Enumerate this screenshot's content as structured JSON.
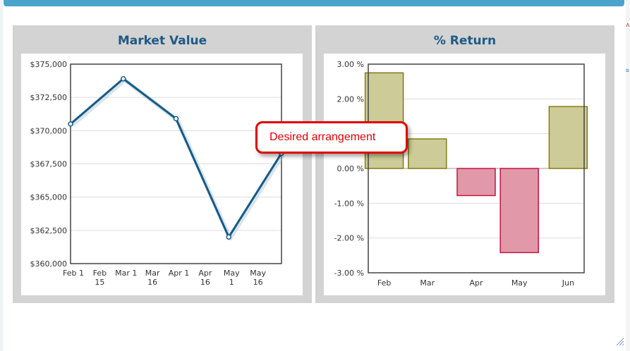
{
  "window": {
    "callout_text": "Desired arrangement"
  },
  "colors": {
    "accent": "#4aa3cb",
    "title": "#1d5a86",
    "line": "#155a86",
    "positive": "#cdcb97",
    "positive_border": "#807c10",
    "negative": "#e198a8",
    "negative_border": "#c4163f"
  },
  "chart_data": [
    {
      "type": "line",
      "title": "Market Value",
      "x": [
        "Feb 1",
        "Feb 15",
        "Mar 1",
        "Mar 16",
        "Apr 1",
        "Apr 16",
        "May 1",
        "May 16"
      ],
      "x_tick_labels": [
        [
          "Feb 1"
        ],
        [
          "Feb",
          "15"
        ],
        [
          "Mar 1"
        ],
        [
          "Mar",
          "16"
        ],
        [
          "Apr 1"
        ],
        [
          "Apr",
          "16"
        ],
        [
          "May",
          "1"
        ],
        [
          "May",
          "16"
        ]
      ],
      "points": [
        {
          "x": 0,
          "y": 370500
        },
        {
          "x": 2,
          "y": 373900
        },
        {
          "x": 4,
          "y": 370900
        },
        {
          "x": 6,
          "y": 362000
        },
        {
          "x": 8,
          "y": 368300
        }
      ],
      "y_ticks": [
        "$375,000",
        "$372,500",
        "$370,000",
        "$367,500",
        "$365,000",
        "$362,500",
        "$360,000"
      ],
      "y_tick_values": [
        375000,
        372500,
        370000,
        367500,
        365000,
        362500,
        360000
      ],
      "ylim": [
        360000,
        375000
      ],
      "grid": true,
      "legend": "none"
    },
    {
      "type": "bar",
      "title": "% Return",
      "categories": [
        "Feb",
        "Mar",
        "Apr",
        "May",
        "Jun"
      ],
      "values": [
        2.75,
        0.85,
        -0.78,
        -2.42,
        1.78
      ],
      "y_ticks": [
        "3.00 %",
        "2.00 %",
        "1.00 %",
        "0.00 %",
        "-1.00 %",
        "-2.00 %",
        "-3.00 %"
      ],
      "y_tick_values": [
        3,
        2,
        1,
        0,
        -1,
        -2,
        -3
      ],
      "ylim": [
        -3,
        3
      ],
      "grid": true,
      "legend": "none"
    }
  ]
}
